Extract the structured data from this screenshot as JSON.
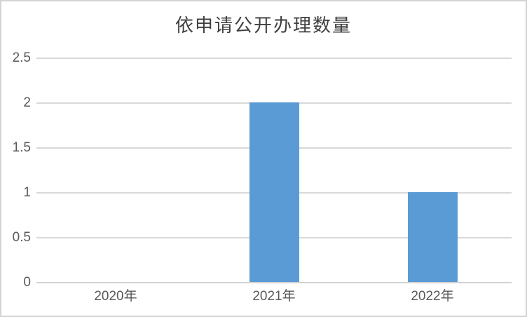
{
  "chart_data": {
    "type": "bar",
    "title": "依申请公开办理数量",
    "categories": [
      "2020年",
      "2021年",
      "2022年"
    ],
    "values": [
      0,
      2,
      1
    ],
    "xlabel": "",
    "ylabel": "",
    "ylim": [
      0,
      2.5
    ],
    "yticks": [
      0,
      0.5,
      1,
      1.5,
      2,
      2.5
    ],
    "ytick_labels": [
      "0",
      "0.5",
      "1",
      "1.5",
      "2",
      "2.5"
    ],
    "grid": true,
    "legend": "none",
    "bar_color": "#5B9BD5",
    "gridline_color": "#D9D9D9",
    "axis_line_color": "#D2D2D2",
    "tick_label_color": "#595959",
    "title_color": "#3F3F3F",
    "frame_border_color": "#D3D3D3",
    "background_color": "#FFFFFF"
  }
}
